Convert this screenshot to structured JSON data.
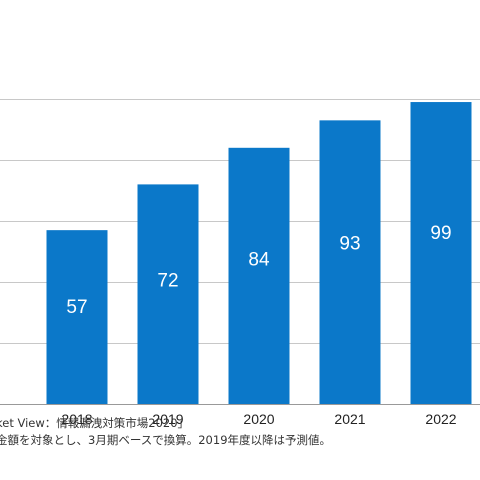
{
  "chart_data": {
    "type": "bar",
    "categories": [
      "2018",
      "2019",
      "2020",
      "2021",
      "2022"
    ],
    "values": [
      57,
      72,
      84,
      93,
      99
    ],
    "data_labels": [
      "57",
      "72",
      "84",
      "93",
      "99"
    ],
    "ylim": [
      0,
      105
    ],
    "grid": true,
    "bar_color": "#0b78c9",
    "label_color": "#ffffff",
    "grid_color": "#c8c8c8"
  },
  "footnotes": {
    "source": "ket View：情報漏洩対策市場2020」",
    "note": "金額を対象とし、3月期ベースで換算。2019年度以降は予測値。"
  }
}
